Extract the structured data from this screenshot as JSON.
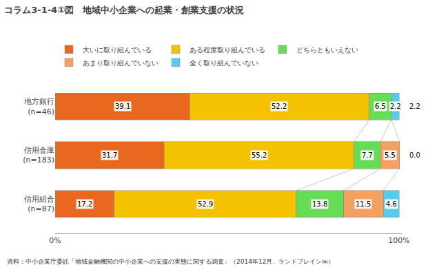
{
  "chart_data": {
    "type": "bar",
    "orientation": "horizontal",
    "stacked": true,
    "title": "コラム3-1-4①図　地域中小企業への起業・創業支援の状況",
    "footnote": "資料：中小企業庁委託「地域金融機関の中小企業への支援の実態に関する調査」（2014年12月、ランドブレイン㈱）",
    "categories": [
      "地方銀行\n(n=46)",
      "信用金庫\n(n=183)",
      "信用組合\n(n=87)"
    ],
    "series": [
      {
        "name": "大いに取り組んでいる",
        "color": "#E86820",
        "values": [
          39.1,
          31.7,
          17.2
        ]
      },
      {
        "name": "ある程度取り組んでいる",
        "color": "#F5C200",
        "values": [
          52.2,
          55.2,
          52.9
        ]
      },
      {
        "name": "どちらともいえない",
        "color": "#66DD55",
        "values": [
          6.5,
          7.7,
          13.8
        ]
      },
      {
        "name": "あまり取り組んでいない",
        "color": "#F5A060",
        "values": [
          0.0,
          5.5,
          11.5
        ],
        "value_labels": [
          null,
          "5.5",
          "11.5"
        ]
      },
      {
        "name": "全く取り組んでいない",
        "color": "#55CCEE",
        "values": [
          2.2,
          0.0,
          4.6
        ],
        "value_labels": [
          "2.2",
          null,
          "4.6"
        ]
      }
    ],
    "xlim": [
      0,
      101
    ],
    "xticks": [
      {
        "value": 0,
        "label": "0%"
      },
      {
        "value": 100,
        "label": "100%"
      }
    ],
    "grid": false,
    "legend": "top",
    "data_labels": true,
    "annotations": [
      {
        "text": "2.2",
        "category": "地方銀行\n(n=46)"
      },
      {
        "text": "0.0",
        "category": "信用金庫\n(n=183)"
      }
    ]
  }
}
